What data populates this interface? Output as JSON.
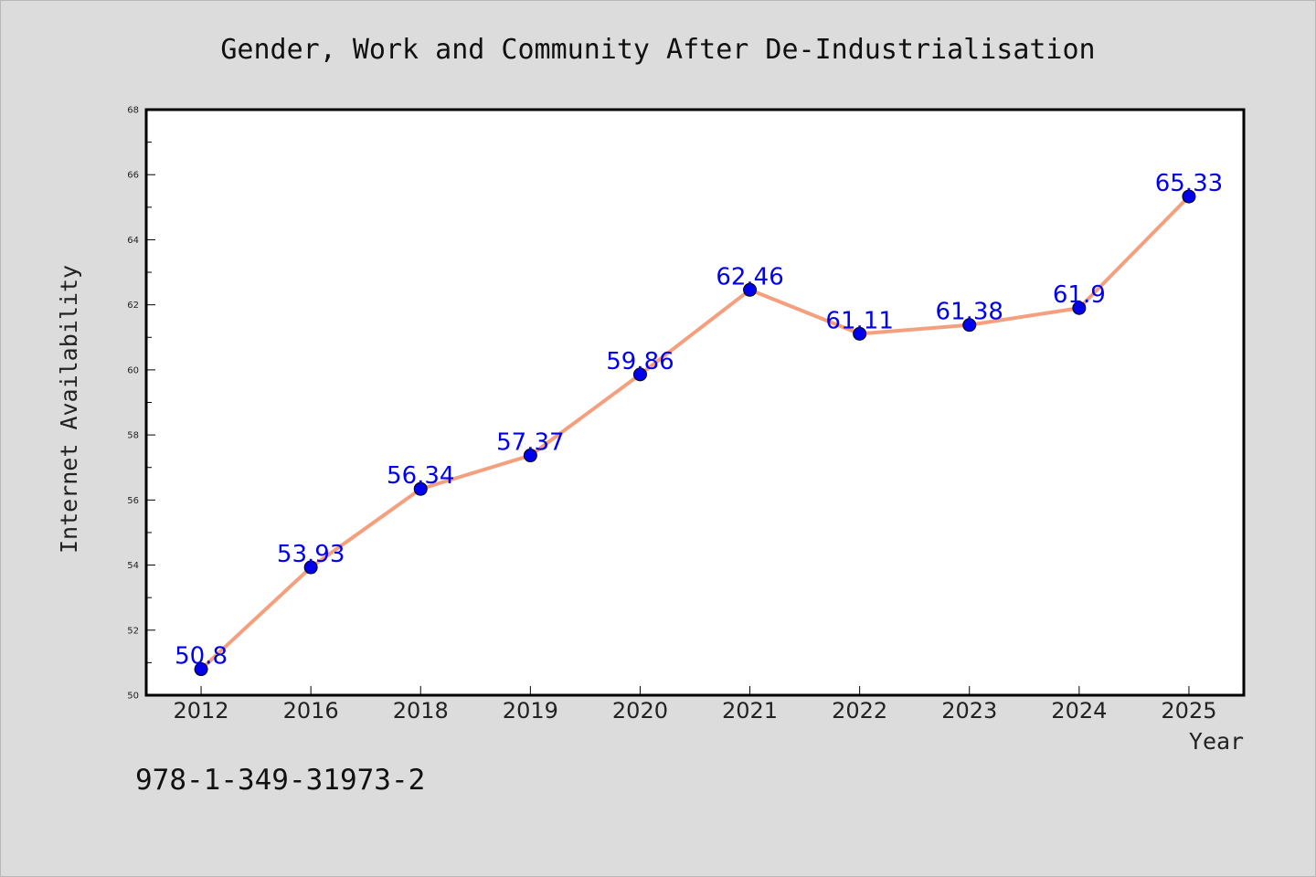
{
  "isbn_text": "978-1-349-31973-2",
  "colors": {
    "background": "#dcdcdc",
    "plot_background": "#ffffff",
    "line": "#f4a07e",
    "marker": "#0000ee",
    "data_label": "#0000ee"
  },
  "chart_data": {
    "type": "line",
    "title": "Gender, Work and Community After De-Industrialisation",
    "xlabel": "Year",
    "ylabel": "Internet Availability",
    "categories": [
      "2012",
      "2016",
      "2018",
      "2019",
      "2020",
      "2021",
      "2022",
      "2023",
      "2024",
      "2025"
    ],
    "values": [
      50.8,
      53.93,
      56.34,
      57.37,
      59.86,
      62.46,
      61.11,
      61.38,
      61.9,
      65.33
    ],
    "data_labels": [
      "50.8",
      "53.93",
      "56.34",
      "57.37",
      "59.86",
      "62.46",
      "61.11",
      "61.38",
      "61.9",
      "65.33"
    ],
    "ylim": [
      50,
      68
    ],
    "yticks": [
      50,
      52,
      54,
      56,
      58,
      60,
      62,
      64,
      66,
      68
    ],
    "grid": false,
    "legend": "none"
  }
}
